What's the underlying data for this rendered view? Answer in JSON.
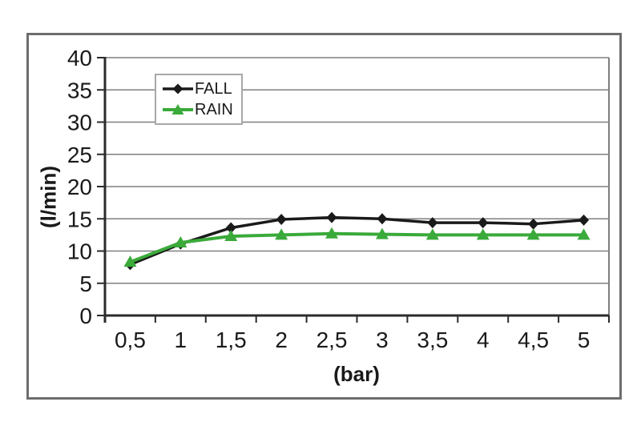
{
  "chart_data": {
    "type": "line",
    "categories": [
      "0,5",
      "1",
      "1,5",
      "2",
      "2,5",
      "3",
      "3,5",
      "4",
      "4,5",
      "5"
    ],
    "series": [
      {
        "name": "FALL",
        "marker": "diamond",
        "color": "#1a1a1a",
        "values": [
          7.9,
          11.1,
          13.6,
          14.9,
          15.2,
          15.0,
          14.4,
          14.4,
          14.2,
          14.8
        ]
      },
      {
        "name": "RAIN",
        "marker": "triangle",
        "color": "#3aaa3a",
        "values": [
          8.3,
          11.3,
          12.3,
          12.5,
          12.7,
          12.6,
          12.5,
          12.5,
          12.5,
          12.5
        ]
      }
    ],
    "title": "",
    "xlabel": "(bar)",
    "ylabel": "(l/min)",
    "ylim": [
      0,
      40
    ],
    "ytick_step": 5,
    "grid": true,
    "legend_position": "inside-top-left"
  },
  "colors": {
    "fall": "#1a1a1a",
    "rain": "#3aaa3a",
    "gridline": "#7f7f7f",
    "axis": "#2b2b2b",
    "frame_border": "#6d6d6d",
    "legend_border": "#a8a8a8",
    "background": "#ffffff"
  }
}
